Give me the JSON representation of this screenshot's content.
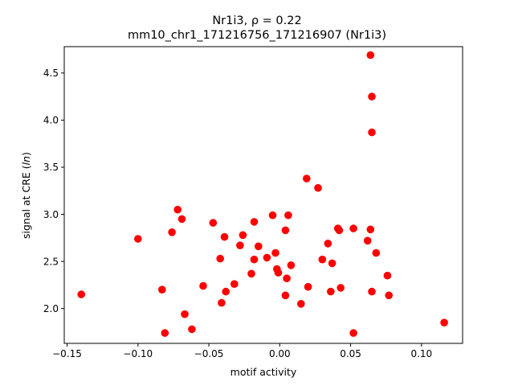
{
  "chart_data": {
    "type": "scatter",
    "title_line1": "Nr1i3, ρ = 0.22",
    "title_line2": "mm10_chr1_171216756_171216907 (Nr1i3)",
    "xlabel": "motif activity",
    "ylabel": "signal at CRE (ln)",
    "xlim": [
      -0.152,
      0.129
    ],
    "ylim": [
      1.63,
      4.78
    ],
    "x_ticks": [
      -0.15,
      -0.1,
      -0.05,
      0.0,
      0.05,
      0.1
    ],
    "x_tick_labels": [
      "−0.15",
      "−0.10",
      "−0.05",
      "0.00",
      "0.05",
      "0.10"
    ],
    "y_ticks": [
      2.0,
      2.5,
      3.0,
      3.5,
      4.0,
      4.5
    ],
    "y_tick_labels": [
      "2.0",
      "2.5",
      "3.0",
      "3.5",
      "4.0",
      "4.5"
    ],
    "grid": false,
    "legend": "none",
    "marker_color": "#ff0000",
    "series": [
      {
        "points": [
          [
            -0.14,
            2.15
          ],
          [
            -0.1,
            2.74
          ],
          [
            -0.083,
            2.2
          ],
          [
            -0.081,
            1.74
          ],
          [
            -0.076,
            2.81
          ],
          [
            -0.072,
            3.05
          ],
          [
            -0.069,
            2.95
          ],
          [
            -0.067,
            1.94
          ],
          [
            -0.062,
            1.78
          ],
          [
            -0.054,
            2.24
          ],
          [
            -0.047,
            2.91
          ],
          [
            -0.042,
            2.53
          ],
          [
            -0.041,
            2.06
          ],
          [
            -0.039,
            2.76
          ],
          [
            -0.038,
            2.18
          ],
          [
            -0.032,
            2.26
          ],
          [
            -0.028,
            2.67
          ],
          [
            -0.026,
            2.78
          ],
          [
            -0.02,
            2.37
          ],
          [
            -0.018,
            2.52
          ],
          [
            -0.018,
            2.92
          ],
          [
            -0.015,
            2.66
          ],
          [
            -0.009,
            2.54
          ],
          [
            -0.005,
            2.99
          ],
          [
            -0.003,
            2.59
          ],
          [
            -0.002,
            2.42
          ],
          [
            -0.001,
            2.38
          ],
          [
            0.004,
            2.83
          ],
          [
            0.004,
            2.14
          ],
          [
            0.005,
            2.32
          ],
          [
            0.006,
            2.99
          ],
          [
            0.008,
            2.46
          ],
          [
            0.015,
            2.05
          ],
          [
            0.019,
            3.38
          ],
          [
            0.02,
            2.23
          ],
          [
            0.027,
            3.28
          ],
          [
            0.03,
            2.52
          ],
          [
            0.034,
            2.69
          ],
          [
            0.036,
            2.18
          ],
          [
            0.037,
            2.48
          ],
          [
            0.041,
            2.85
          ],
          [
            0.042,
            2.83
          ],
          [
            0.043,
            2.22
          ],
          [
            0.052,
            2.85
          ],
          [
            0.052,
            1.74
          ],
          [
            0.062,
            2.72
          ],
          [
            0.064,
            4.69
          ],
          [
            0.064,
            2.84
          ],
          [
            0.065,
            4.25
          ],
          [
            0.065,
            3.87
          ],
          [
            0.065,
            2.18
          ],
          [
            0.068,
            2.59
          ],
          [
            0.076,
            2.35
          ],
          [
            0.077,
            2.14
          ],
          [
            0.116,
            1.85
          ]
        ]
      }
    ]
  }
}
